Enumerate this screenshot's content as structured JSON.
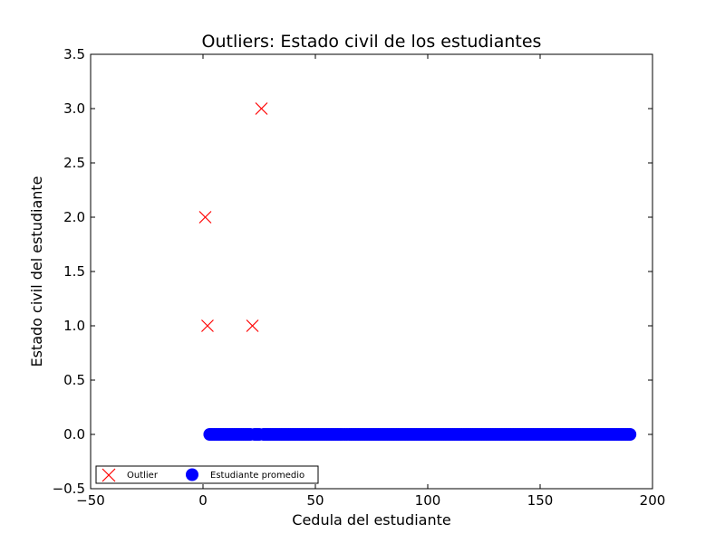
{
  "chart_data": {
    "type": "scatter",
    "title": "Outliers: Estado civil de los estudiantes",
    "xlabel": "Cedula del estudiante",
    "ylabel": "Estado civil del estudiante",
    "xlim": [
      -50,
      200
    ],
    "ylim": [
      -0.5,
      3.5
    ],
    "xticks": [
      -50,
      0,
      50,
      100,
      150,
      200
    ],
    "xtick_labels": [
      "−50",
      "0",
      "50",
      "100",
      "150",
      "200"
    ],
    "yticks": [
      -0.5,
      0.0,
      0.5,
      1.0,
      1.5,
      2.0,
      2.5,
      3.0,
      3.5
    ],
    "ytick_labels": [
      "−0.5",
      "0.0",
      "0.5",
      "1.0",
      "1.5",
      "2.0",
      "2.5",
      "3.0",
      "3.5"
    ],
    "grid": false,
    "legend_position": "bottom-left",
    "series": [
      {
        "name": "Outlier",
        "marker": "x",
        "color": "#ff0000",
        "points": [
          [
            1,
            2
          ],
          [
            2,
            1
          ],
          [
            22,
            1
          ],
          [
            26,
            3
          ]
        ]
      },
      {
        "name": "Estudiante promedio",
        "marker": "circle",
        "color": "#0000ff",
        "x_range": [
          3,
          190
        ],
        "x_exclude": [
          22,
          26
        ],
        "y": 0
      }
    ]
  }
}
